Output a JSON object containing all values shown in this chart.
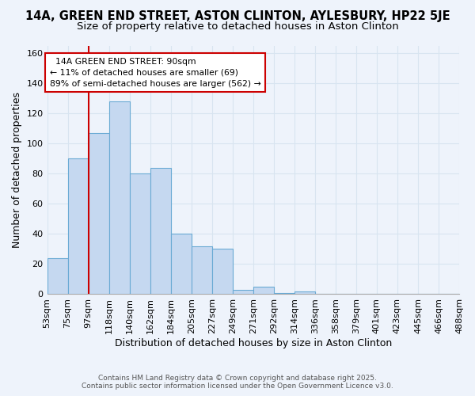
{
  "title": "14A, GREEN END STREET, ASTON CLINTON, AYLESBURY, HP22 5JE",
  "subtitle": "Size of property relative to detached houses in Aston Clinton",
  "xlabel": "Distribution of detached houses by size in Aston Clinton",
  "ylabel": "Number of detached properties",
  "bar_values": [
    24,
    90,
    107,
    128,
    80,
    84,
    40,
    32,
    30,
    3,
    5,
    1,
    2,
    0,
    0,
    0,
    0,
    0,
    0,
    0
  ],
  "categories": [
    "53sqm",
    "75sqm",
    "97sqm",
    "118sqm",
    "140sqm",
    "162sqm",
    "184sqm",
    "205sqm",
    "227sqm",
    "249sqm",
    "271sqm",
    "292sqm",
    "314sqm",
    "336sqm",
    "358sqm",
    "379sqm",
    "401sqm",
    "423sqm",
    "445sqm",
    "466sqm",
    "488sqm"
  ],
  "bar_color": "#c5d8f0",
  "bar_edge_color": "#6aaad4",
  "property_label": "14A GREEN END STREET: 90sqm",
  "smaller_text": "← 11% of detached houses are smaller (69)",
  "larger_text": "89% of semi-detached houses are larger (562) →",
  "annotation_box_color": "#ffffff",
  "annotation_box_edge_color": "#cc0000",
  "vline_color": "#cc0000",
  "vline_x": 2,
  "ylim": [
    0,
    165
  ],
  "yticks": [
    0,
    20,
    40,
    60,
    80,
    100,
    120,
    140,
    160
  ],
  "footer_line1": "Contains HM Land Registry data © Crown copyright and database right 2025.",
  "footer_line2": "Contains public sector information licensed under the Open Government Licence v3.0.",
  "background_color": "#eef3fb",
  "grid_color": "#d8e4f0",
  "title_fontsize": 10.5,
  "subtitle_fontsize": 9.5,
  "axis_label_fontsize": 9,
  "tick_fontsize": 8
}
